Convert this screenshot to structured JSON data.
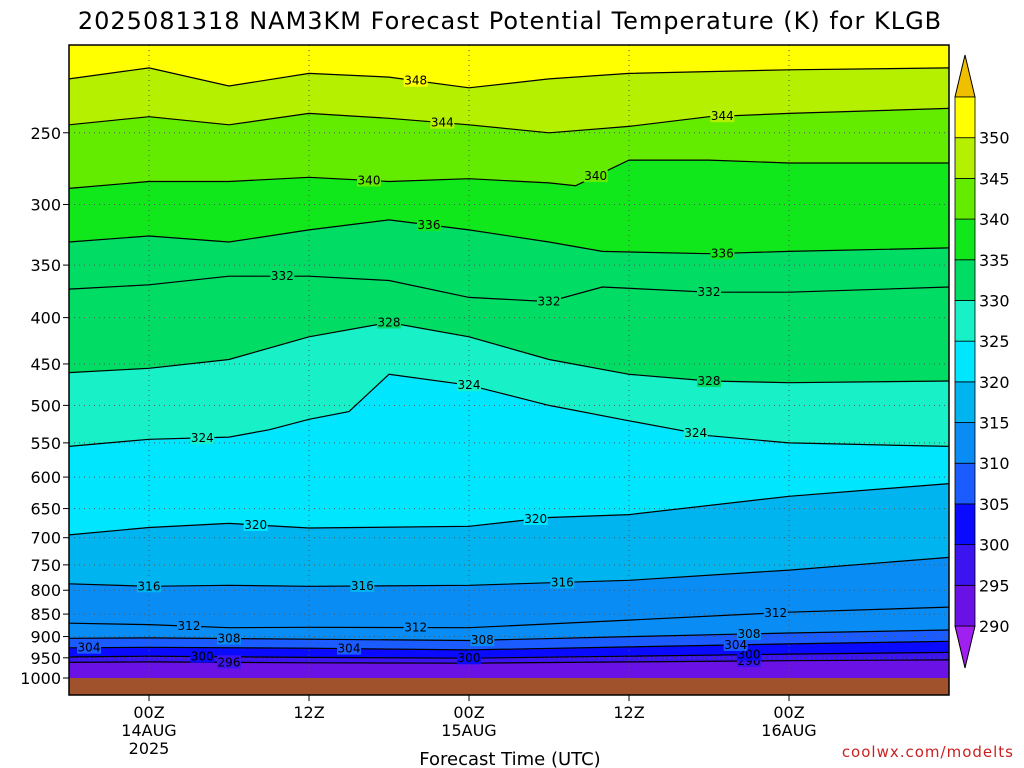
{
  "chart_data": {
    "type": "heatmap",
    "title": "2025081318 NAM3KM Forecast Potential Temperature (K) for KLGB",
    "xlabel": "Forecast Time (UTC)",
    "ylabel": "",
    "credit": "coolwx.com/modelts",
    "x_range_hours": [
      -6,
      60
    ],
    "x_ticks": [
      {
        "hour": 0,
        "lines": [
          "00Z",
          "14AUG",
          "2025"
        ]
      },
      {
        "hour": 12,
        "lines": [
          "12Z"
        ]
      },
      {
        "hour": 24,
        "lines": [
          "00Z",
          "15AUG"
        ]
      },
      {
        "hour": 36,
        "lines": [
          "12Z"
        ]
      },
      {
        "hour": 48,
        "lines": [
          "00Z",
          "16AUG"
        ]
      }
    ],
    "y_scale": "log-pressure",
    "y_range_hpa": [
      1000,
      200
    ],
    "y_ticks": [
      250,
      300,
      350,
      400,
      450,
      500,
      550,
      600,
      650,
      700,
      750,
      800,
      850,
      900,
      950,
      1000
    ],
    "grid": "dotted",
    "colorbar": {
      "levels": [
        285,
        290,
        295,
        300,
        305,
        310,
        315,
        320,
        325,
        330,
        335,
        340,
        345,
        350,
        355
      ],
      "labels": [
        290,
        295,
        300,
        305,
        310,
        315,
        320,
        325,
        330,
        335,
        340,
        345,
        350
      ],
      "colors": [
        "#a020f0",
        "#6a12e6",
        "#3c14f0",
        "#0a0aff",
        "#1a5cff",
        "#0a8cf5",
        "#00b4f0",
        "#00e6ff",
        "#18f0c8",
        "#00dc64",
        "#10e81c",
        "#64ec00",
        "#b4f000",
        "#ffff00",
        "#f0c000"
      ]
    },
    "contours": [
      {
        "value": 296,
        "label": "296",
        "points": [
          [
            -6,
            961
          ],
          [
            0,
            960
          ],
          [
            12,
            962
          ],
          [
            24,
            963
          ],
          [
            36,
            960
          ],
          [
            48,
            957
          ],
          [
            60,
            955
          ]
        ],
        "label_hours": [
          6,
          45
        ]
      },
      {
        "value": 300,
        "label": "300",
        "points": [
          [
            -6,
            948
          ],
          [
            0,
            946
          ],
          [
            12,
            949
          ],
          [
            24,
            951
          ],
          [
            36,
            946
          ],
          [
            48,
            941
          ],
          [
            60,
            937
          ]
        ],
        "label_hours": [
          4,
          24,
          45
        ]
      },
      {
        "value": 304,
        "label": "304",
        "points": [
          [
            -6,
            926
          ],
          [
            0,
            925
          ],
          [
            12,
            927
          ],
          [
            24,
            931
          ],
          [
            36,
            924
          ],
          [
            48,
            917
          ],
          [
            60,
            911
          ]
        ],
        "label_hours": [
          -4.5,
          15,
          44
        ]
      },
      {
        "value": 308,
        "label": "308",
        "points": [
          [
            -6,
            904
          ],
          [
            0,
            903
          ],
          [
            12,
            906
          ],
          [
            24,
            909
          ],
          [
            36,
            900
          ],
          [
            48,
            892
          ],
          [
            60,
            885
          ]
        ],
        "label_hours": [
          6,
          25,
          45
        ]
      },
      {
        "value": 312,
        "label": "312",
        "points": [
          [
            -6,
            870
          ],
          [
            0,
            873
          ],
          [
            6,
            880
          ],
          [
            12,
            879
          ],
          [
            24,
            880
          ],
          [
            36,
            863
          ],
          [
            48,
            846
          ],
          [
            60,
            835
          ]
        ],
        "label_hours": [
          3,
          20,
          47
        ]
      },
      {
        "value": 316,
        "label": "316",
        "points": [
          [
            -6,
            787
          ],
          [
            0,
            792
          ],
          [
            6,
            790
          ],
          [
            12,
            792
          ],
          [
            24,
            790
          ],
          [
            36,
            780
          ],
          [
            48,
            760
          ],
          [
            60,
            736
          ]
        ],
        "label_hours": [
          0,
          16,
          31
        ]
      },
      {
        "value": 320,
        "label": "320",
        "points": [
          [
            -6,
            695
          ],
          [
            0,
            682
          ],
          [
            6,
            675
          ],
          [
            12,
            683
          ],
          [
            24,
            680
          ],
          [
            30,
            665
          ],
          [
            36,
            660
          ],
          [
            48,
            630
          ],
          [
            60,
            610
          ]
        ],
        "label_hours": [
          8,
          29
        ]
      },
      {
        "value": 324,
        "label": "324",
        "points": [
          [
            -6,
            555
          ],
          [
            0,
            545
          ],
          [
            6,
            542
          ],
          [
            9,
            532
          ],
          [
            12,
            518
          ],
          [
            15,
            508
          ],
          [
            18,
            462
          ],
          [
            24,
            475
          ],
          [
            30,
            500
          ],
          [
            36,
            520
          ],
          [
            42,
            540
          ],
          [
            48,
            550
          ],
          [
            60,
            555
          ]
        ],
        "label_hours": [
          4,
          24,
          41
        ]
      },
      {
        "value": 328,
        "label": "328",
        "points": [
          [
            -6,
            460
          ],
          [
            0,
            455
          ],
          [
            6,
            445
          ],
          [
            12,
            420
          ],
          [
            18,
            405
          ],
          [
            24,
            420
          ],
          [
            30,
            445
          ],
          [
            36,
            462
          ],
          [
            42,
            470
          ],
          [
            48,
            472
          ],
          [
            60,
            470
          ]
        ],
        "label_hours": [
          18,
          42
        ]
      },
      {
        "value": 332,
        "label": "332",
        "points": [
          [
            -6,
            372
          ],
          [
            0,
            368
          ],
          [
            6,
            360
          ],
          [
            12,
            360
          ],
          [
            18,
            364
          ],
          [
            24,
            380
          ],
          [
            30,
            384
          ],
          [
            34,
            370
          ],
          [
            42,
            375
          ],
          [
            48,
            375
          ],
          [
            60,
            370
          ]
        ],
        "label_hours": [
          10,
          30,
          42
        ]
      },
      {
        "value": 336,
        "label": "336",
        "points": [
          [
            -6,
            330
          ],
          [
            0,
            325
          ],
          [
            6,
            330
          ],
          [
            12,
            320
          ],
          [
            18,
            312
          ],
          [
            24,
            320
          ],
          [
            30,
            330
          ],
          [
            34,
            338
          ],
          [
            42,
            340
          ],
          [
            48,
            338
          ],
          [
            60,
            335
          ]
        ],
        "label_hours": [
          21,
          43
        ]
      },
      {
        "value": 340,
        "label": "340",
        "points": [
          [
            -6,
            288
          ],
          [
            0,
            283
          ],
          [
            6,
            283
          ],
          [
            12,
            280
          ],
          [
            18,
            283
          ],
          [
            24,
            281
          ],
          [
            30,
            284
          ],
          [
            32,
            286
          ],
          [
            36,
            268
          ],
          [
            42,
            268
          ],
          [
            48,
            270
          ],
          [
            60,
            270
          ]
        ],
        "label_hours": [
          16.5,
          33.5
        ]
      },
      {
        "value": 344,
        "label": "344",
        "points": [
          [
            -6,
            245
          ],
          [
            0,
            240
          ],
          [
            6,
            245
          ],
          [
            12,
            238
          ],
          [
            18,
            241
          ],
          [
            24,
            245
          ],
          [
            30,
            250
          ],
          [
            36,
            246
          ],
          [
            42,
            240
          ],
          [
            48,
            238
          ],
          [
            60,
            235
          ]
        ],
        "label_hours": [
          22,
          43
        ]
      },
      {
        "value": 348,
        "label": "348",
        "points": [
          [
            -6,
            218
          ],
          [
            0,
            212
          ],
          [
            6,
            222
          ],
          [
            12,
            215
          ],
          [
            18,
            217
          ],
          [
            24,
            223
          ],
          [
            30,
            218
          ],
          [
            36,
            215
          ],
          [
            48,
            213
          ],
          [
            60,
            212
          ]
        ],
        "label_hours": [
          20
        ]
      }
    ]
  }
}
